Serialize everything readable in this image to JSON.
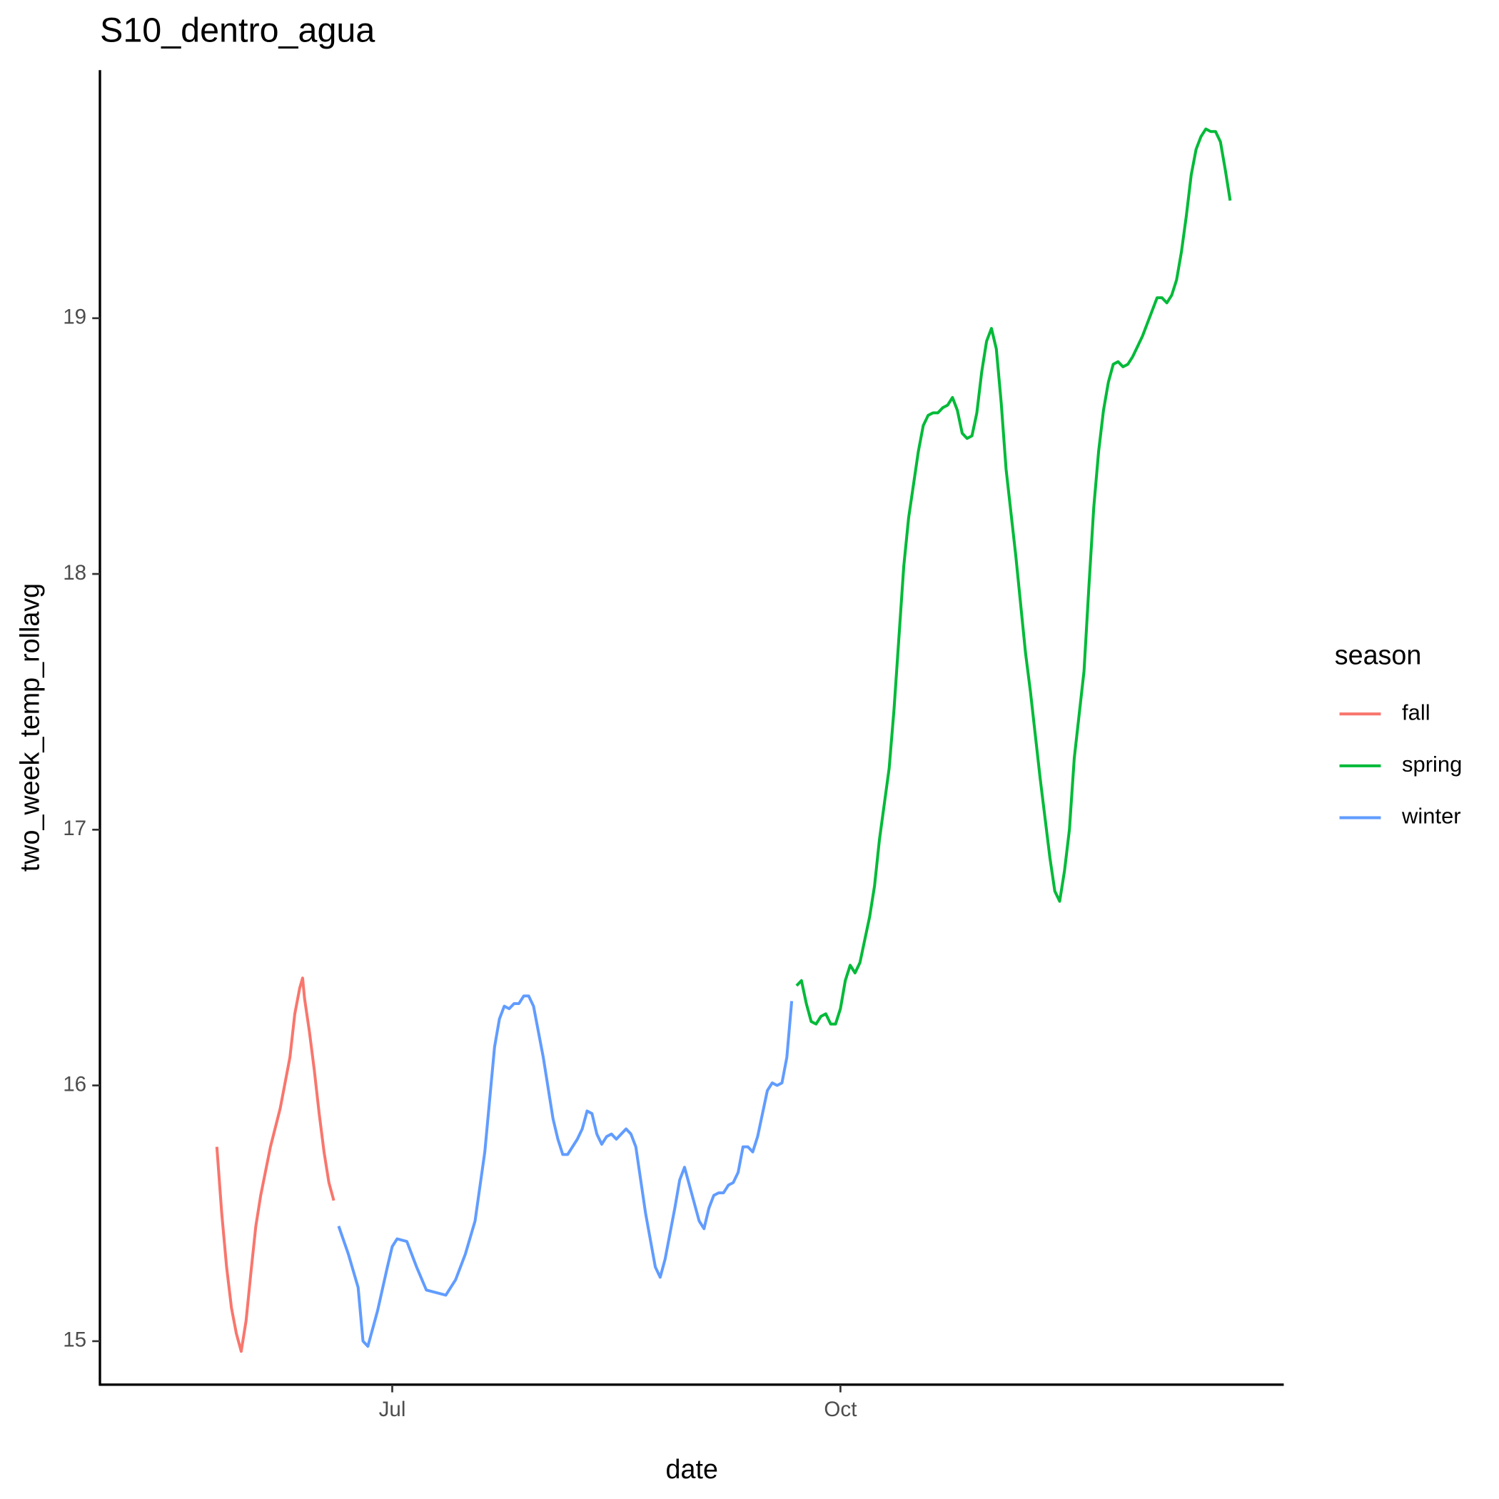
{
  "chart_data": {
    "type": "line",
    "title": "S10_dentro_agua",
    "x_label": "date",
    "y_label": "two_week_temp_rollavg",
    "legend_title": "season",
    "legend_position": "right",
    "xlim": [
      122,
      365
    ],
    "ylim": [
      14.83,
      19.97
    ],
    "xticks": [
      {
        "value": 182,
        "label": "Jul"
      },
      {
        "value": 274,
        "label": "Oct"
      }
    ],
    "yticks": [
      15,
      16,
      17,
      18,
      19
    ],
    "series": [
      {
        "name": "fall",
        "color": "#f8766d",
        "x": [
          146,
          147,
          148,
          149,
          150,
          151,
          152,
          153,
          154,
          155,
          157,
          159,
          161,
          162,
          163,
          163.6,
          164,
          165,
          166,
          167,
          168,
          169,
          170
        ],
        "values": [
          15.76,
          15.5,
          15.29,
          15.13,
          15.03,
          14.96,
          15.08,
          15.27,
          15.45,
          15.57,
          15.76,
          15.91,
          16.11,
          16.28,
          16.38,
          16.42,
          16.34,
          16.21,
          16.06,
          15.89,
          15.74,
          15.62,
          15.55
        ]
      },
      {
        "name": "spring",
        "color": "#00ba38",
        "x": [
          265,
          266,
          267,
          268,
          269,
          270,
          271,
          272,
          273,
          274,
          275,
          276,
          277,
          278,
          280,
          281,
          282,
          284,
          285,
          286,
          287,
          288,
          289,
          290,
          291,
          292,
          293,
          294,
          295,
          296,
          297,
          298,
          299,
          300,
          301,
          302,
          303,
          304,
          305,
          306,
          307,
          308,
          310,
          312,
          313,
          315,
          317,
          318,
          319,
          320,
          321,
          322,
          324,
          325,
          326,
          327,
          328,
          329,
          330,
          331,
          332,
          333,
          334,
          335,
          336,
          337,
          338,
          339,
          340,
          341,
          342,
          343,
          344,
          345,
          346,
          347,
          348,
          349,
          350,
          351,
          352,
          353,
          354
        ],
        "values": [
          16.39,
          16.41,
          16.32,
          16.25,
          16.24,
          16.27,
          16.28,
          16.24,
          16.24,
          16.3,
          16.41,
          16.47,
          16.44,
          16.48,
          16.66,
          16.78,
          16.96,
          17.24,
          17.47,
          17.75,
          18.03,
          18.22,
          18.35,
          18.48,
          18.58,
          18.62,
          18.63,
          18.63,
          18.65,
          18.66,
          18.69,
          18.64,
          18.55,
          18.53,
          18.54,
          18.63,
          18.79,
          18.91,
          18.96,
          18.88,
          18.67,
          18.41,
          18.07,
          17.69,
          17.54,
          17.2,
          16.89,
          16.76,
          16.72,
          16.84,
          17.0,
          17.28,
          17.62,
          17.95,
          18.26,
          18.48,
          18.64,
          18.75,
          18.82,
          18.83,
          18.81,
          18.82,
          18.85,
          18.89,
          18.93,
          18.98,
          19.03,
          19.08,
          19.08,
          19.06,
          19.09,
          19.15,
          19.26,
          19.4,
          19.56,
          19.66,
          19.71,
          19.74,
          19.73,
          19.73,
          19.69,
          19.58,
          19.46
        ]
      },
      {
        "name": "winter",
        "color": "#619cff",
        "x": [
          171,
          173,
          175,
          176,
          177,
          179,
          181,
          182,
          183,
          185,
          187,
          189,
          191,
          193,
          195,
          197,
          199,
          201,
          203,
          204,
          205,
          206,
          207,
          208,
          209,
          210,
          211,
          213,
          215,
          216,
          217,
          218,
          220,
          221,
          222,
          223,
          224,
          225,
          226,
          227,
          228,
          229,
          230,
          231,
          232,
          234,
          236,
          237,
          238,
          240,
          241,
          242,
          243,
          245,
          246,
          247,
          248,
          249,
          250,
          251,
          252,
          253,
          254,
          255,
          256,
          257,
          259,
          260,
          261,
          262,
          263,
          264
        ],
        "values": [
          15.45,
          15.34,
          15.21,
          15.0,
          14.98,
          15.12,
          15.29,
          15.37,
          15.4,
          15.39,
          15.29,
          15.2,
          15.19,
          15.18,
          15.24,
          15.34,
          15.47,
          15.74,
          16.15,
          16.26,
          16.31,
          16.3,
          16.32,
          16.32,
          16.35,
          16.35,
          16.31,
          16.11,
          15.87,
          15.79,
          15.73,
          15.73,
          15.79,
          15.83,
          15.9,
          15.89,
          15.81,
          15.77,
          15.8,
          15.81,
          15.79,
          15.81,
          15.83,
          15.81,
          15.76,
          15.5,
          15.29,
          15.25,
          15.32,
          15.52,
          15.63,
          15.68,
          15.61,
          15.47,
          15.44,
          15.52,
          15.57,
          15.58,
          15.58,
          15.61,
          15.62,
          15.66,
          15.76,
          15.76,
          15.74,
          15.8,
          15.98,
          16.01,
          16.0,
          16.01,
          16.11,
          16.33
        ]
      }
    ]
  }
}
